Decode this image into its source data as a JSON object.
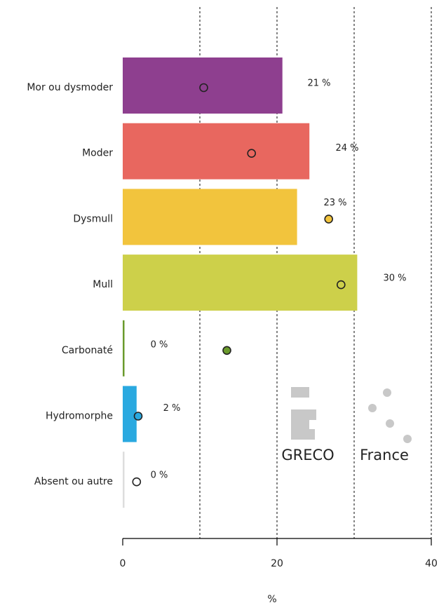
{
  "chart_data": {
    "type": "bar",
    "orientation": "horizontal",
    "x_label": "%",
    "categories": [
      "Mor ou dysmoder",
      "Moder",
      "Dysmull",
      "Mull",
      "Carbonaté",
      "Hydromorphe",
      "Absent ou autre"
    ],
    "colors": [
      "#8e3f8f",
      "#e8675f",
      "#f2c43d",
      "#cdd04a",
      "#6a9a2c",
      "#2aa9e0",
      "#dddddd"
    ],
    "series": [
      {
        "name": "GRECO",
        "color": "#c8c8c8",
        "values": [
          20.7,
          24.2,
          22.6,
          30.4,
          0,
          1.8,
          0
        ],
        "value_labels": [
          "21 %",
          "24 %",
          "23 %",
          "30 %",
          "0 %",
          "2 %",
          "0 %"
        ]
      },
      {
        "name": "France",
        "color": "#c8c8c8",
        "values": [
          10.5,
          16.7,
          26.7,
          28.3,
          13.5,
          2.0,
          1.8
        ]
      }
    ],
    "xlim": [
      0,
      40
    ],
    "xticks": [
      0,
      20,
      40
    ],
    "gridlines": [
      10,
      20,
      30,
      40
    ]
  }
}
